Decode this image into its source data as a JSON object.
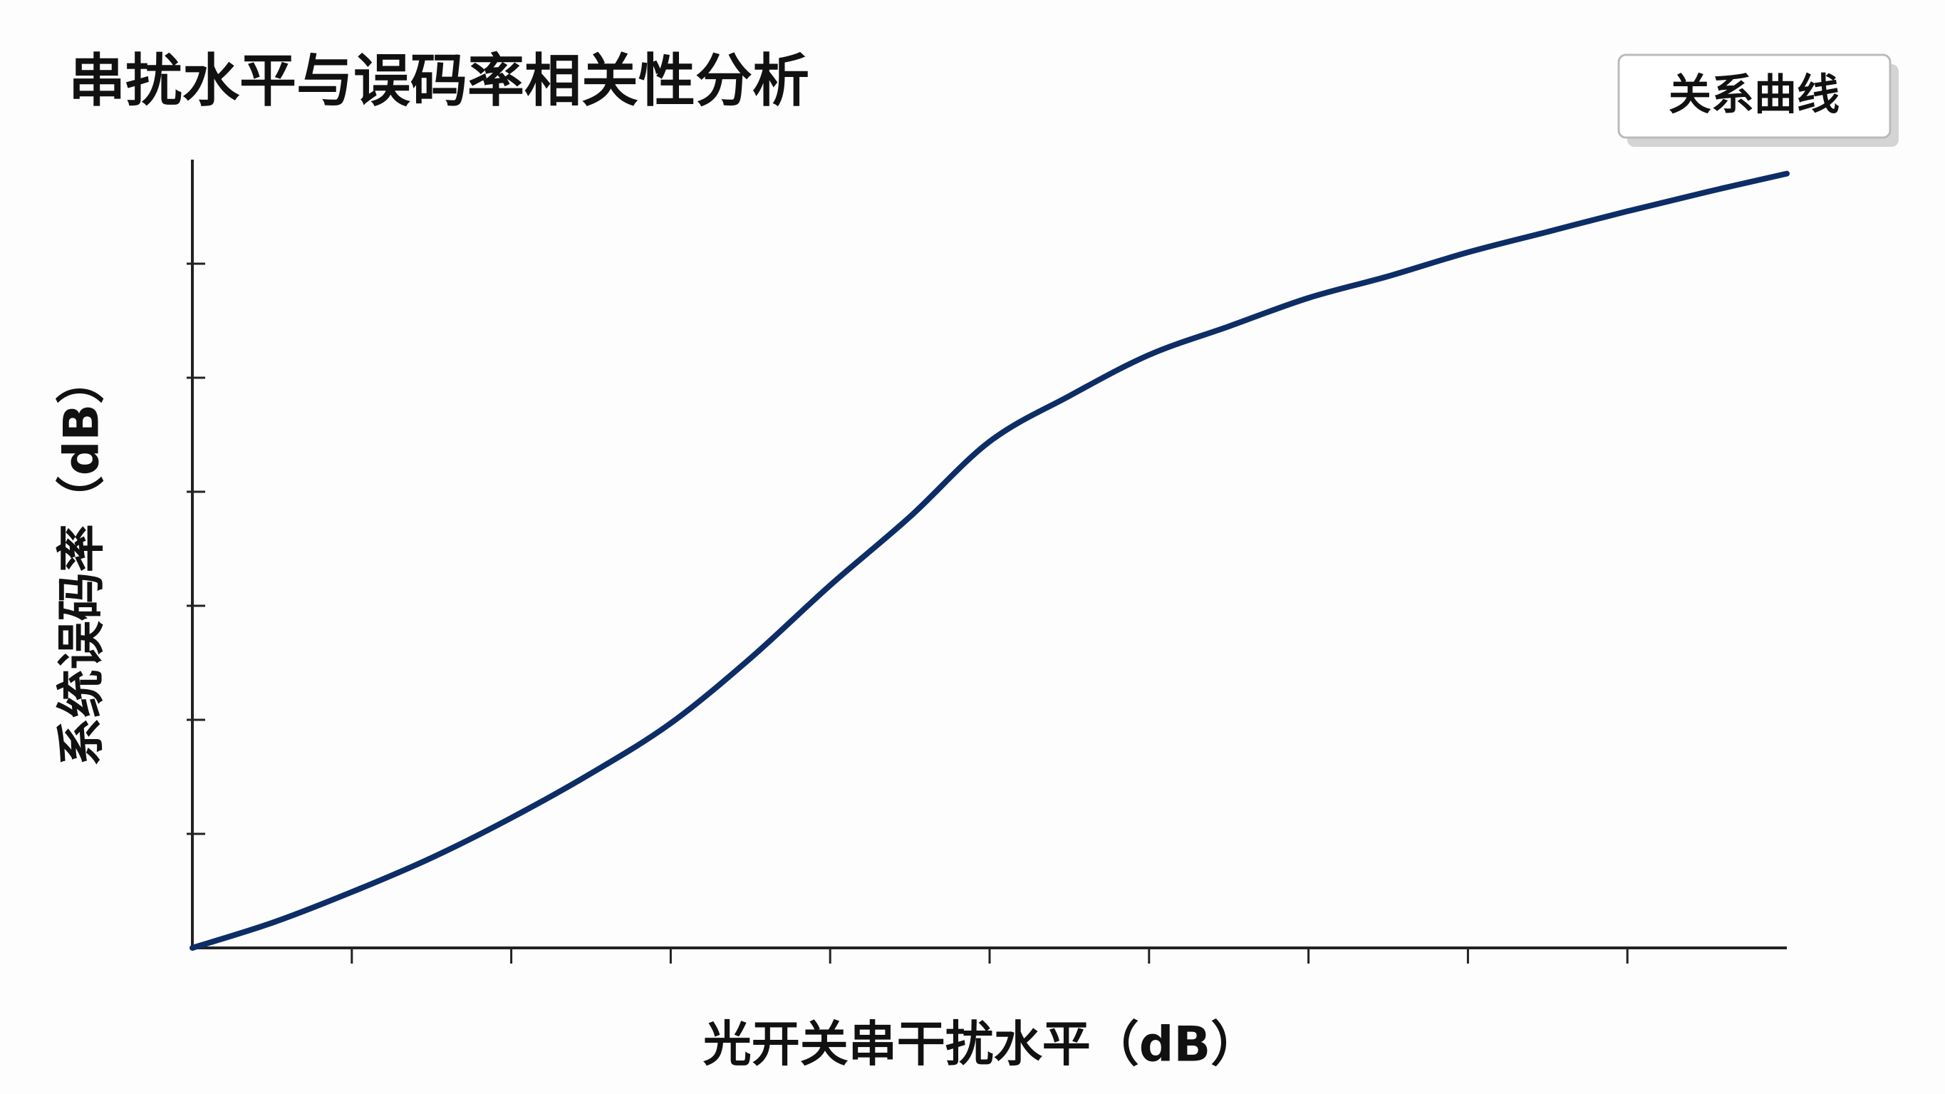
{
  "chart_data": {
    "type": "line",
    "title": "串扰水平与误码率相关性分析",
    "x_label": "光开关串干扰水平（dB）",
    "y_label": "系统误码率（dB）",
    "x": [
      0,
      5,
      10,
      15,
      20,
      25,
      30,
      35,
      40,
      45,
      50,
      55,
      60,
      65,
      70,
      75,
      80,
      85,
      90,
      95,
      100
    ],
    "series": [
      {
        "name": "关系曲线",
        "color": "#0d2d66",
        "values": [
          0,
          0.22,
          0.49,
          0.79,
          1.14,
          1.53,
          1.97,
          2.54,
          3.18,
          3.78,
          4.44,
          4.84,
          5.2,
          5.45,
          5.7,
          5.89,
          6.1,
          6.28,
          6.46,
          6.63,
          6.79
        ]
      }
    ],
    "xlim": [
      0,
      100
    ],
    "ylim": [
      0,
      7
    ],
    "xticks": [
      10,
      20,
      30,
      40,
      50,
      60,
      70,
      80,
      90
    ],
    "yticks": [
      1,
      2,
      3,
      4,
      5,
      6
    ],
    "legend": "upper right"
  }
}
